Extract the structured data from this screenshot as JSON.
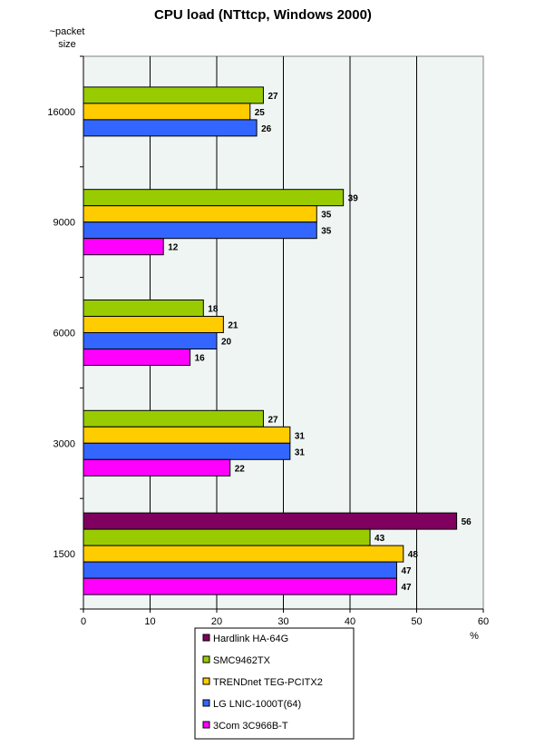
{
  "chart_data": {
    "type": "bar",
    "orientation": "horizontal",
    "title": "CPU load (NTttcp, Windows 2000)",
    "ylabel": "~packet size",
    "ylabel_lines": [
      "~packet",
      "size"
    ],
    "xlabel": "%",
    "xlim": [
      0,
      60
    ],
    "xticks": [
      0,
      10,
      20,
      30,
      40,
      50,
      60
    ],
    "grid": true,
    "legend_position": "bottom",
    "categories": [
      "16000",
      "9000",
      "6000",
      "3000",
      "1500"
    ],
    "series": [
      {
        "name": "Hardlink HA-64G",
        "color": "#800060",
        "values": [
          null,
          null,
          null,
          null,
          56
        ]
      },
      {
        "name": "SMC9462TX",
        "color": "#99CC00",
        "values": [
          27,
          39,
          18,
          27,
          43
        ]
      },
      {
        "name": "TRENDnet TEG-PCITX2",
        "color": "#FFCC00",
        "values": [
          25,
          35,
          21,
          31,
          48
        ]
      },
      {
        "name": "LG LNIC-1000T(64)",
        "color": "#3366FF",
        "values": [
          26,
          35,
          20,
          31,
          47
        ]
      },
      {
        "name": "3Com 3C966B-T",
        "color": "#FF00FF",
        "values": [
          null,
          12,
          16,
          22,
          47
        ]
      }
    ]
  },
  "colors": {
    "plot_background": "#EEF5F2",
    "border": "#000000"
  }
}
